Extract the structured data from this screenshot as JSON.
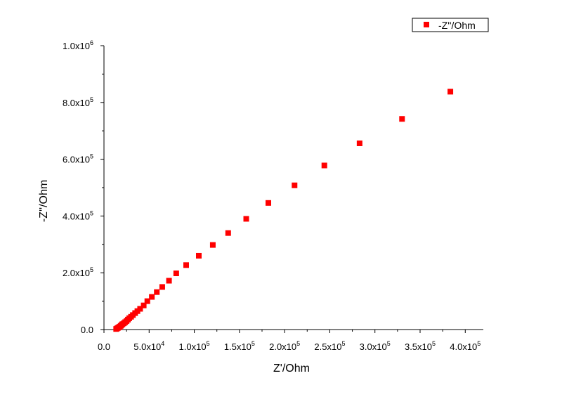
{
  "chart_data": {
    "type": "scatter",
    "xlabel": "Z'/Ohm",
    "ylabel": "-Z''/Ohm",
    "xlim": [
      0,
      420000
    ],
    "ylim": [
      0,
      1000000
    ],
    "grid": false,
    "legend_position": "top-right",
    "marker_color": "#ff0000",
    "x_ticks": [
      {
        "value": 0,
        "label": "0.0"
      },
      {
        "value": 50000,
        "mant": "5.0x10",
        "exp": "4"
      },
      {
        "value": 100000,
        "mant": "1.0x10",
        "exp": "5"
      },
      {
        "value": 150000,
        "mant": "1.5x10",
        "exp": "5"
      },
      {
        "value": 200000,
        "mant": "2.0x10",
        "exp": "5"
      },
      {
        "value": 250000,
        "mant": "2.5x10",
        "exp": "5"
      },
      {
        "value": 300000,
        "mant": "3.0x10",
        "exp": "5"
      },
      {
        "value": 350000,
        "mant": "3.5x10",
        "exp": "5"
      },
      {
        "value": 400000,
        "mant": "4.0x10",
        "exp": "5"
      }
    ],
    "y_ticks": [
      {
        "value": 0,
        "label": "0.0"
      },
      {
        "value": 200000,
        "mant": "2.0x10",
        "exp": "5"
      },
      {
        "value": 400000,
        "mant": "4.0x10",
        "exp": "5"
      },
      {
        "value": 600000,
        "mant": "6.0x10",
        "exp": "5"
      },
      {
        "value": 800000,
        "mant": "8.0x10",
        "exp": "5"
      },
      {
        "value": 1000000,
        "mant": "1.0x10",
        "exp": "6"
      }
    ],
    "series": [
      {
        "name": "-Z''/Ohm",
        "x": [
          13500,
          14500,
          15500,
          16500,
          17500,
          18500,
          19500,
          20500,
          22000,
          23500,
          25000,
          26500,
          28000,
          30000,
          32000,
          34500,
          37000,
          40000,
          44000,
          48000,
          53000,
          58500,
          64500,
          72000,
          80000,
          91000,
          105000,
          120500,
          137500,
          157500,
          182000,
          211000,
          244000,
          283000,
          330000,
          383500
        ],
        "y": [
          2000,
          4000,
          6000,
          8000,
          10000,
          13000,
          16000,
          19000,
          22000,
          26000,
          30000,
          35000,
          40000,
          45000,
          51000,
          58000,
          65000,
          73000,
          85000,
          100000,
          115000,
          132000,
          150000,
          172000,
          198000,
          227000,
          260000,
          298000,
          340000,
          390000,
          446000,
          508000,
          578000,
          656000,
          742000,
          838000
        ]
      }
    ]
  }
}
